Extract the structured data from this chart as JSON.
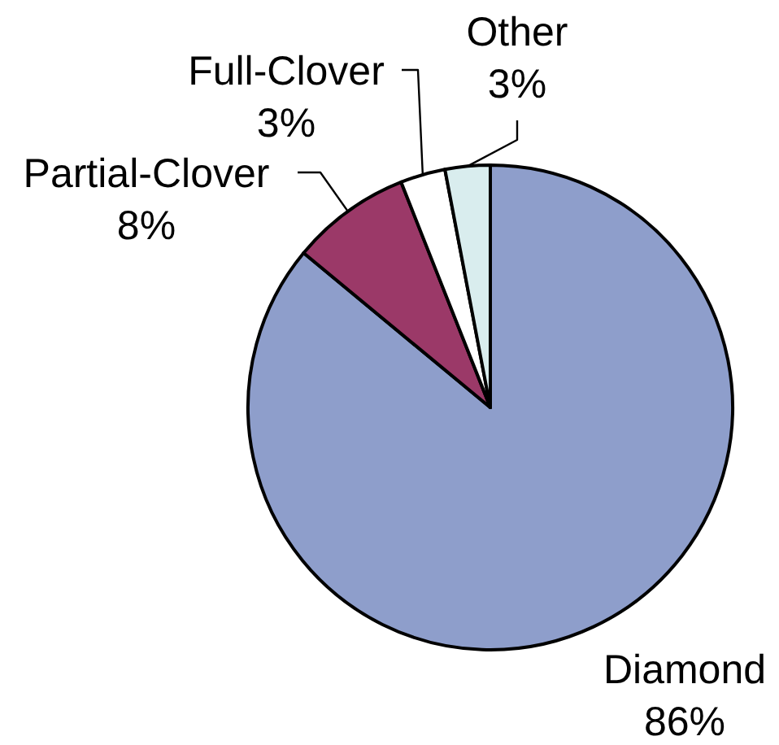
{
  "chart_data": {
    "type": "pie",
    "categories": [
      "Diamond",
      "Partial-Clover",
      "Full-Clover",
      "Other"
    ],
    "values": [
      86,
      8,
      3,
      3
    ],
    "colors": [
      "#8e9ecb",
      "#9b3968",
      "#ffffff",
      "#d9edee"
    ],
    "value_labels": [
      "86%",
      "8%",
      "3%",
      "3%"
    ]
  }
}
